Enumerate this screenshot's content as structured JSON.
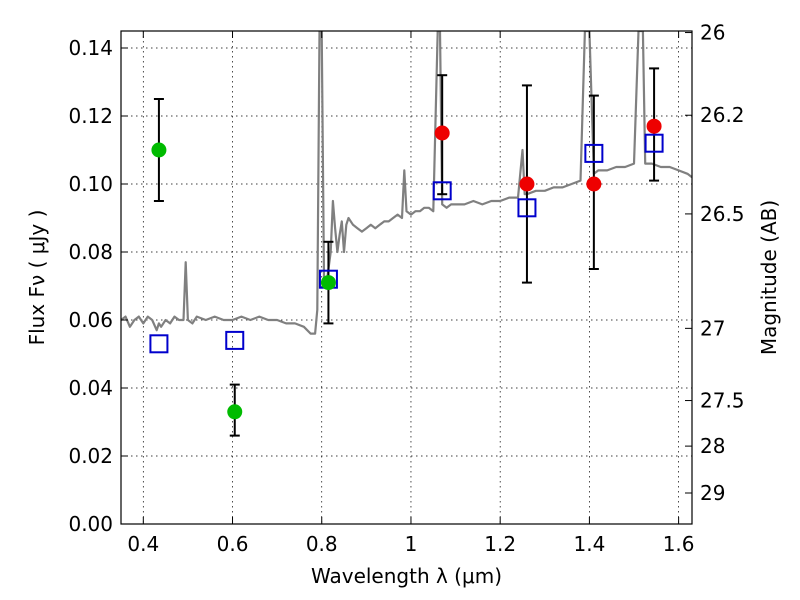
{
  "chart_data": {
    "type": "scatter",
    "xlabel": "Wavelength  λ (μm)",
    "ylabel": "Flux  Fν  ( μJy )",
    "y2label": "Magnitude (AB)",
    "xlim": [
      0.35,
      1.63
    ],
    "ylim": [
      0.0,
      0.145
    ],
    "grid": true,
    "xticks": [
      0.4,
      0.6,
      0.8,
      1.0,
      1.2,
      1.4,
      1.6
    ],
    "xtick_labels": [
      "0.4",
      "0.6",
      "0.8",
      "1",
      "1.2",
      "1.4",
      "1.6"
    ],
    "yticks": [
      0.0,
      0.02,
      0.04,
      0.06,
      0.08,
      0.1,
      0.12,
      0.14
    ],
    "ytick_labels": [
      "0.00",
      "0.02",
      "0.04",
      "0.06",
      "0.08",
      "0.10",
      "0.12",
      "0.14"
    ],
    "y2ticks": [
      {
        "mag": 26,
        "label": "26"
      },
      {
        "mag": 26.2,
        "label": "26.2"
      },
      {
        "mag": 26.5,
        "label": "26.5"
      },
      {
        "mag": 27,
        "label": "27"
      },
      {
        "mag": 27.5,
        "label": "27.5"
      },
      {
        "mag": 28,
        "label": "28"
      },
      {
        "mag": 29,
        "label": "29"
      }
    ],
    "model_spectrum": {
      "color": "#808080",
      "points": [
        [
          0.35,
          0.06
        ],
        [
          0.36,
          0.061
        ],
        [
          0.37,
          0.058
        ],
        [
          0.38,
          0.06
        ],
        [
          0.39,
          0.061
        ],
        [
          0.4,
          0.059
        ],
        [
          0.41,
          0.061
        ],
        [
          0.42,
          0.06
        ],
        [
          0.43,
          0.057
        ],
        [
          0.435,
          0.059
        ],
        [
          0.44,
          0.058
        ],
        [
          0.45,
          0.06
        ],
        [
          0.46,
          0.059
        ],
        [
          0.47,
          0.061
        ],
        [
          0.48,
          0.06
        ],
        [
          0.49,
          0.06
        ],
        [
          0.495,
          0.077
        ],
        [
          0.5,
          0.06
        ],
        [
          0.51,
          0.059
        ],
        [
          0.52,
          0.061
        ],
        [
          0.54,
          0.06
        ],
        [
          0.56,
          0.061
        ],
        [
          0.58,
          0.06
        ],
        [
          0.6,
          0.06
        ],
        [
          0.62,
          0.061
        ],
        [
          0.64,
          0.06
        ],
        [
          0.66,
          0.061
        ],
        [
          0.68,
          0.06
        ],
        [
          0.7,
          0.06
        ],
        [
          0.72,
          0.059
        ],
        [
          0.74,
          0.059
        ],
        [
          0.76,
          0.058
        ],
        [
          0.775,
          0.056
        ],
        [
          0.785,
          0.056
        ],
        [
          0.79,
          0.063
        ],
        [
          0.795,
          0.145
        ],
        [
          0.8,
          0.145
        ],
        [
          0.805,
          0.072
        ],
        [
          0.81,
          0.07
        ],
        [
          0.82,
          0.08
        ],
        [
          0.825,
          0.095
        ],
        [
          0.83,
          0.087
        ],
        [
          0.835,
          0.08
        ],
        [
          0.84,
          0.085
        ],
        [
          0.845,
          0.089
        ],
        [
          0.85,
          0.08
        ],
        [
          0.855,
          0.088
        ],
        [
          0.86,
          0.09
        ],
        [
          0.87,
          0.088
        ],
        [
          0.88,
          0.087
        ],
        [
          0.89,
          0.086
        ],
        [
          0.9,
          0.087
        ],
        [
          0.91,
          0.088
        ],
        [
          0.92,
          0.087
        ],
        [
          0.93,
          0.088
        ],
        [
          0.94,
          0.089
        ],
        [
          0.95,
          0.089
        ],
        [
          0.96,
          0.09
        ],
        [
          0.97,
          0.091
        ],
        [
          0.98,
          0.09
        ],
        [
          0.985,
          0.104
        ],
        [
          0.99,
          0.092
        ],
        [
          1.0,
          0.091
        ],
        [
          1.01,
          0.092
        ],
        [
          1.02,
          0.092
        ],
        [
          1.03,
          0.093
        ],
        [
          1.04,
          0.093
        ],
        [
          1.05,
          0.092
        ],
        [
          1.06,
          0.145
        ],
        [
          1.065,
          0.145
        ],
        [
          1.07,
          0.094
        ],
        [
          1.08,
          0.093
        ],
        [
          1.09,
          0.094
        ],
        [
          1.1,
          0.094
        ],
        [
          1.12,
          0.094
        ],
        [
          1.14,
          0.095
        ],
        [
          1.16,
          0.094
        ],
        [
          1.18,
          0.095
        ],
        [
          1.2,
          0.095
        ],
        [
          1.22,
          0.096
        ],
        [
          1.24,
          0.096
        ],
        [
          1.25,
          0.11
        ],
        [
          1.255,
          0.097
        ],
        [
          1.26,
          0.097
        ],
        [
          1.28,
          0.098
        ],
        [
          1.3,
          0.098
        ],
        [
          1.32,
          0.099
        ],
        [
          1.34,
          0.099
        ],
        [
          1.36,
          0.1
        ],
        [
          1.38,
          0.101
        ],
        [
          1.39,
          0.145
        ],
        [
          1.4,
          0.145
        ],
        [
          1.41,
          0.103
        ],
        [
          1.42,
          0.104
        ],
        [
          1.44,
          0.104
        ],
        [
          1.46,
          0.105
        ],
        [
          1.48,
          0.105
        ],
        [
          1.5,
          0.106
        ],
        [
          1.51,
          0.145
        ],
        [
          1.52,
          0.145
        ],
        [
          1.525,
          0.106
        ],
        [
          1.54,
          0.106
        ],
        [
          1.56,
          0.105
        ],
        [
          1.58,
          0.105
        ],
        [
          1.6,
          0.104
        ],
        [
          1.62,
          0.103
        ],
        [
          1.63,
          0.102
        ]
      ]
    },
    "model_photometry": {
      "marker": "open-square",
      "color": "#0000cc",
      "points": [
        {
          "x": 0.435,
          "y": 0.053
        },
        {
          "x": 0.605,
          "y": 0.054
        },
        {
          "x": 0.815,
          "y": 0.072
        },
        {
          "x": 1.07,
          "y": 0.098
        },
        {
          "x": 1.26,
          "y": 0.093
        },
        {
          "x": 1.41,
          "y": 0.109
        },
        {
          "x": 1.545,
          "y": 0.112
        }
      ]
    },
    "observed_optical": {
      "marker": "filled-circle",
      "color": "#00bb00",
      "points": [
        {
          "x": 0.435,
          "y": 0.11,
          "err_lo": 0.095,
          "err_hi": 0.125
        },
        {
          "x": 0.605,
          "y": 0.033,
          "err_lo": 0.026,
          "err_hi": 0.041
        },
        {
          "x": 0.815,
          "y": 0.071,
          "err_lo": 0.059,
          "err_hi": 0.083
        }
      ]
    },
    "observed_nir": {
      "marker": "filled-circle",
      "color": "#ee0000",
      "points": [
        {
          "x": 1.07,
          "y": 0.115,
          "err_lo": 0.097,
          "err_hi": 0.132
        },
        {
          "x": 1.26,
          "y": 0.1,
          "err_lo": 0.071,
          "err_hi": 0.129
        },
        {
          "x": 1.41,
          "y": 0.1,
          "err_lo": 0.075,
          "err_hi": 0.126
        },
        {
          "x": 1.545,
          "y": 0.117,
          "err_lo": 0.101,
          "err_hi": 0.134
        }
      ]
    }
  }
}
